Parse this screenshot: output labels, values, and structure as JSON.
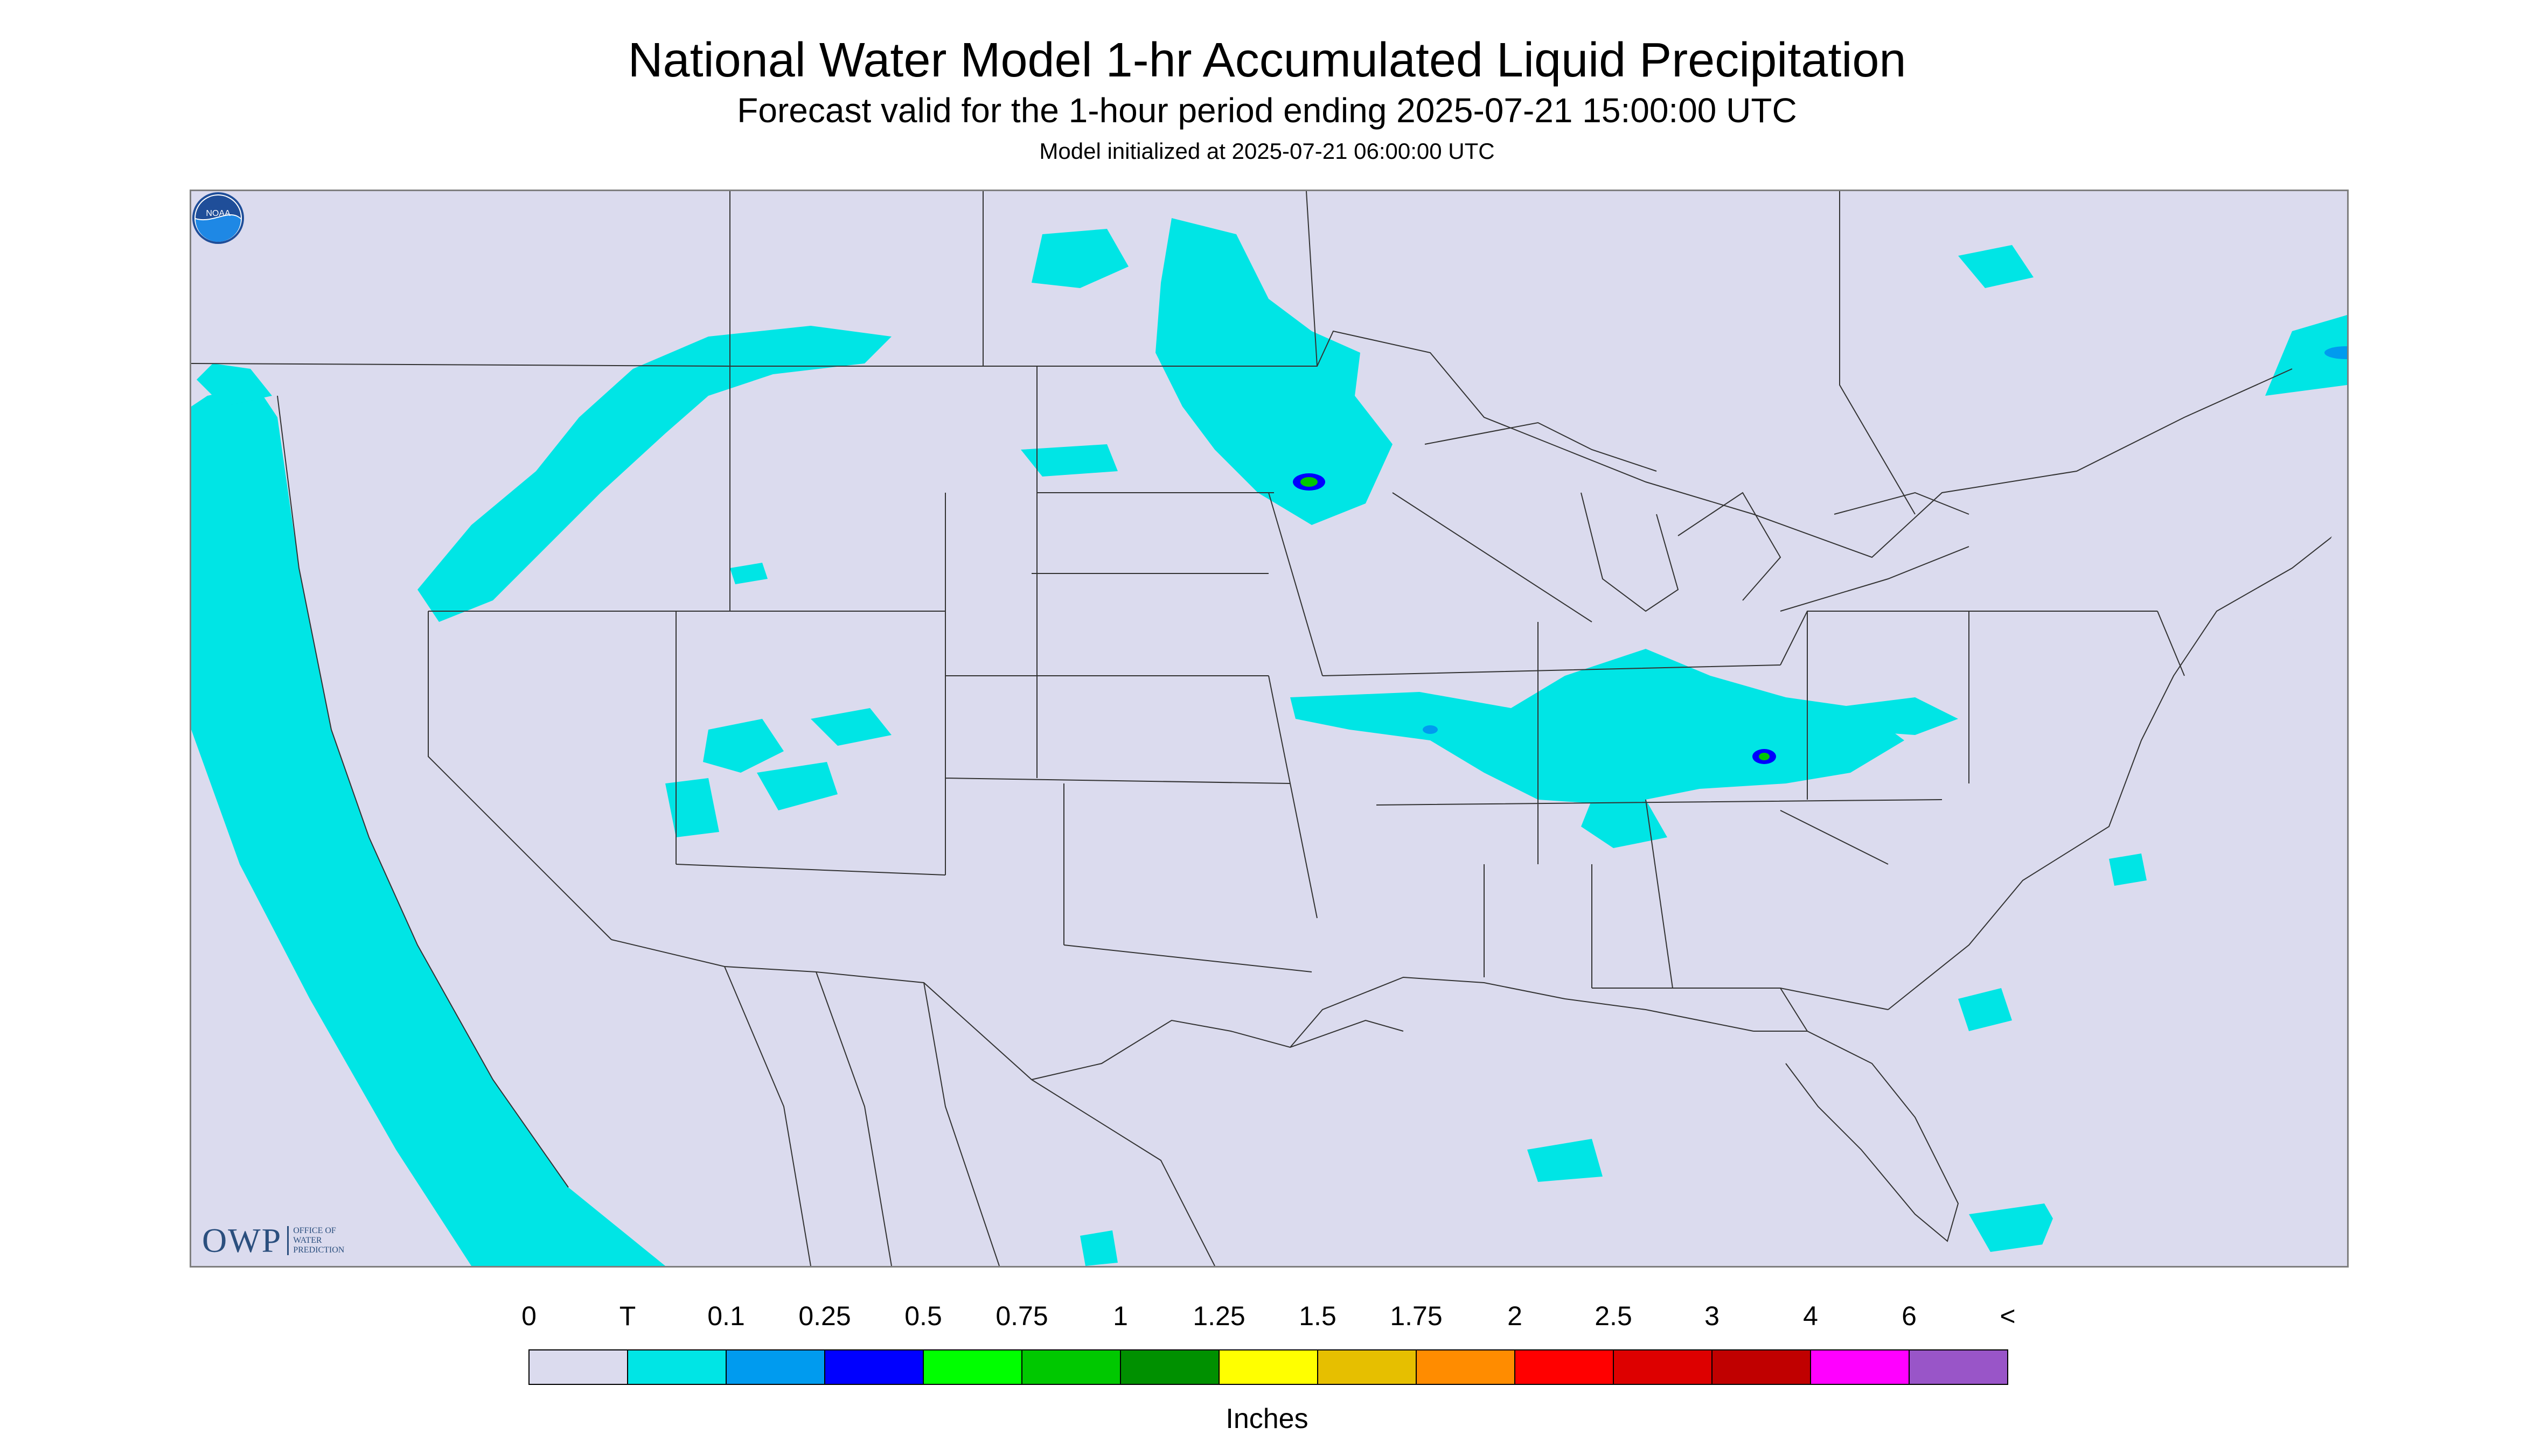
{
  "header": {
    "title": "National Water Model 1-hr Accumulated Liquid Precipitation",
    "subtitle": "Forecast valid for the 1-hour period ending 2025-07-21 15:00:00 UTC",
    "init": "Model initialized at 2025-07-21 06:00:00 UTC"
  },
  "map": {
    "background_color": "#dbdbee",
    "border_line_color": "#333333",
    "precip_regions": "light precipitation (T to 0.1 in) over Pacific Northwest, Upper Midwest, Ohio Valley, Southwest monsoon area, Gulf and Atlantic coasts"
  },
  "logos": {
    "owp_text": "OWP",
    "owp_small": "OFFICE OF\nWATER\nPREDICTION",
    "noaa_text": "NOAA"
  },
  "legend": {
    "labels": [
      "0",
      "T",
      "0.1",
      "0.25",
      "0.5",
      "0.75",
      "1",
      "1.25",
      "1.5",
      "1.75",
      "2",
      "2.5",
      "3",
      "4",
      "6",
      "<"
    ],
    "colors": [
      "#dbdbee",
      "#00e5e5",
      "#009bef",
      "#0000ff",
      "#00ff00",
      "#00c800",
      "#009000",
      "#ffff00",
      "#e6bf00",
      "#ff8c00",
      "#ff0000",
      "#dd0000",
      "#c00000",
      "#ff00ff",
      "#9955c8"
    ],
    "units": "Inches"
  }
}
